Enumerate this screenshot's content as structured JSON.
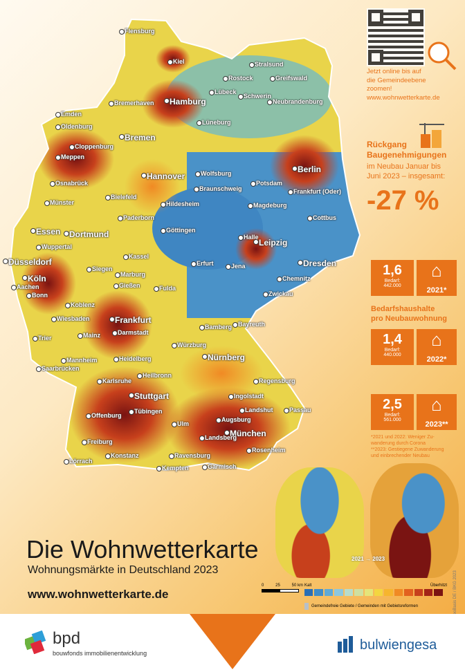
{
  "qr": {
    "caption_lines": [
      "Jetzt online bis auf",
      "die Gemeindeebene",
      "zoomen!",
      "www.wohnwetterkarte.de"
    ]
  },
  "decline": {
    "title_lines": [
      "Rückgang",
      "Baugenehmigungen"
    ],
    "text_lines": [
      "im Neubau Januar bis",
      "Juni 2023 – insgesamt:"
    ],
    "value": "-27 %"
  },
  "stats": [
    {
      "value": "1,6",
      "label": "Bedarf:",
      "amount": "442.000",
      "year": "2021*"
    },
    {
      "value": "1,4",
      "label": "Bedarf:",
      "amount": "440.000",
      "year": "2022*"
    },
    {
      "value": "2,5",
      "label": "Bedarf:",
      "amount": "561.000",
      "year": "2023**"
    }
  ],
  "households_label_lines": [
    "Bedarfshaushalte",
    "pro Neubauwohnung"
  ],
  "footnotes": [
    "*2021 und 2022: Weniger Zu-",
    "wanderung durch Corona",
    "**2023: Gestiegene Zuwanderung",
    "und einbrechender Neubau"
  ],
  "title": "Die Wohnwetterkarte",
  "subtitle": "Wohnungsmärkte in Deutschland 2023",
  "url": "www.wohnwetterkarte.de",
  "small_maps_label": "2021 → 2023",
  "scale": {
    "labels": [
      "0",
      "25",
      "50 km"
    ]
  },
  "legend": {
    "low": "Kalt",
    "high": "Überhitzt",
    "note": "Gemeindefreie Gebiete / Gemeinden mit Gebietsreformen",
    "colors": [
      "#2a6fb5",
      "#3f8cc8",
      "#5fa9d6",
      "#8cc7de",
      "#b8dccb",
      "#cfe0a0",
      "#e5e57a",
      "#f3d640",
      "#f6b52e",
      "#f08a24",
      "#e2611f",
      "#c7401c",
      "#a22417",
      "#7a1412"
    ]
  },
  "copyright": "© GeoBasis DE / BKG 2023",
  "bpd": {
    "name": "bpd",
    "tagline": "bouwfonds immobilienentwicklung"
  },
  "bulwiengesa": {
    "name": "bulwiengesa"
  },
  "cities": [
    {
      "name": "Flensburg",
      "big": false
    },
    {
      "name": "Kiel",
      "big": false
    },
    {
      "name": "Stralsund",
      "big": false
    },
    {
      "name": "Rostock",
      "big": false
    },
    {
      "name": "Greifswald",
      "big": false
    },
    {
      "name": "Lübeck",
      "big": false
    },
    {
      "name": "Schwerin",
      "big": false
    },
    {
      "name": "Bremerhaven",
      "big": false
    },
    {
      "name": "Hamburg",
      "big": true
    },
    {
      "name": "Neubrandenburg",
      "big": false
    },
    {
      "name": "Emden",
      "big": false
    },
    {
      "name": "Oldenburg",
      "big": false
    },
    {
      "name": "Lüneburg",
      "big": false
    },
    {
      "name": "Bremen",
      "big": true
    },
    {
      "name": "Cloppenburg",
      "big": false
    },
    {
      "name": "Meppen",
      "big": false
    },
    {
      "name": "Berlin",
      "big": true
    },
    {
      "name": "Hannover",
      "big": true
    },
    {
      "name": "Wolfsburg",
      "big": false
    },
    {
      "name": "Potsdam",
      "big": false
    },
    {
      "name": "Frankfurt (Oder)",
      "big": false
    },
    {
      "name": "Osnabrück",
      "big": false
    },
    {
      "name": "Braunschweig",
      "big": false
    },
    {
      "name": "Magdeburg",
      "big": false
    },
    {
      "name": "Münster",
      "big": false
    },
    {
      "name": "Bielefeld",
      "big": false
    },
    {
      "name": "Hildesheim",
      "big": false
    },
    {
      "name": "Paderborn",
      "big": false
    },
    {
      "name": "Cottbus",
      "big": false
    },
    {
      "name": "Essen",
      "big": true
    },
    {
      "name": "Dortmund",
      "big": true
    },
    {
      "name": "Göttingen",
      "big": false
    },
    {
      "name": "Wuppertal",
      "big": false
    },
    {
      "name": "Halle",
      "big": false
    },
    {
      "name": "Leipzig",
      "big": true
    },
    {
      "name": "Düsseldorf",
      "big": true
    },
    {
      "name": "Kassel",
      "big": false
    },
    {
      "name": "Dresden",
      "big": true
    },
    {
      "name": "Erfurt",
      "big": false
    },
    {
      "name": "Jena",
      "big": false
    },
    {
      "name": "Siegen",
      "big": false
    },
    {
      "name": "Marburg",
      "big": false
    },
    {
      "name": "Chemnitz",
      "big": false
    },
    {
      "name": "Köln",
      "big": true
    },
    {
      "name": "Aachen",
      "big": false
    },
    {
      "name": "Bonn",
      "big": false
    },
    {
      "name": "Gießen",
      "big": false
    },
    {
      "name": "Fulda",
      "big": false
    },
    {
      "name": "Zwickau",
      "big": false
    },
    {
      "name": "Koblenz",
      "big": false
    },
    {
      "name": "Wiesbaden",
      "big": false
    },
    {
      "name": "Frankfurt",
      "big": true
    },
    {
      "name": "Mainz",
      "big": false
    },
    {
      "name": "Darmstadt",
      "big": false
    },
    {
      "name": "Bamberg",
      "big": false
    },
    {
      "name": "Bayreuth",
      "big": false
    },
    {
      "name": "Trier",
      "big": false
    },
    {
      "name": "Würzburg",
      "big": false
    },
    {
      "name": "Mannheim",
      "big": false
    },
    {
      "name": "Heidelberg",
      "big": false
    },
    {
      "name": "Nürnberg",
      "big": true
    },
    {
      "name": "Saarbrücken",
      "big": false
    },
    {
      "name": "Heilbronn",
      "big": false
    },
    {
      "name": "Regensburg",
      "big": false
    },
    {
      "name": "Karlsruhe",
      "big": false
    },
    {
      "name": "Stuttgart",
      "big": true
    },
    {
      "name": "Ingolstadt",
      "big": false
    },
    {
      "name": "Offenburg",
      "big": false
    },
    {
      "name": "Tübingen",
      "big": false
    },
    {
      "name": "Landshut",
      "big": false
    },
    {
      "name": "Passau",
      "big": false
    },
    {
      "name": "Augsburg",
      "big": false
    },
    {
      "name": "Ulm",
      "big": false
    },
    {
      "name": "München",
      "big": true
    },
    {
      "name": "Freiburg",
      "big": false
    },
    {
      "name": "Landsberg",
      "big": false
    },
    {
      "name": "Rosenheim",
      "big": false
    },
    {
      "name": "Konstanz",
      "big": false
    },
    {
      "name": "Ravensburg",
      "big": false
    },
    {
      "name": "Lörrach",
      "big": false
    },
    {
      "name": "Garmisch",
      "big": false
    },
    {
      "name": "Kempten",
      "big": false
    }
  ]
}
